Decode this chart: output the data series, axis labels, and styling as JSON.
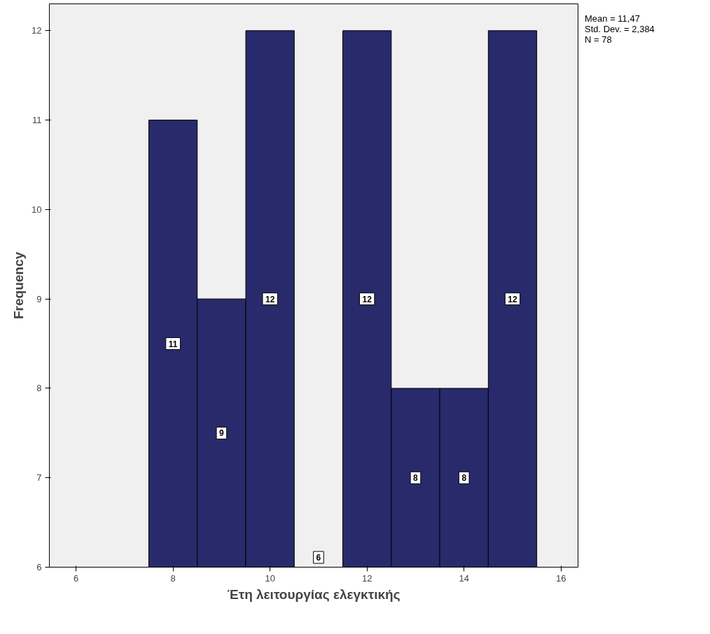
{
  "chart_data": {
    "type": "histogram",
    "xlabel": "Έτη λειτουργίας ελεγκτικής",
    "ylabel": "Frequency",
    "bins": [
      7.5,
      8.5,
      9.5,
      10.5,
      11.5,
      12.5,
      13.5,
      14.5,
      15.5
    ],
    "values": [
      11,
      9,
      12,
      6,
      12,
      8,
      8,
      12
    ],
    "color": "#282a6c",
    "data_labels": true,
    "xlim": [
      5.45,
      16.35
    ],
    "xticks": [
      6,
      8,
      10,
      12,
      14,
      16
    ],
    "ylim": [
      6,
      12.3
    ],
    "yticks": [
      6,
      7,
      8,
      9,
      10,
      11,
      12
    ],
    "annotations": [
      "Mean = 11,47",
      "Std. Dev. = 2,384",
      "N = 78"
    ]
  }
}
